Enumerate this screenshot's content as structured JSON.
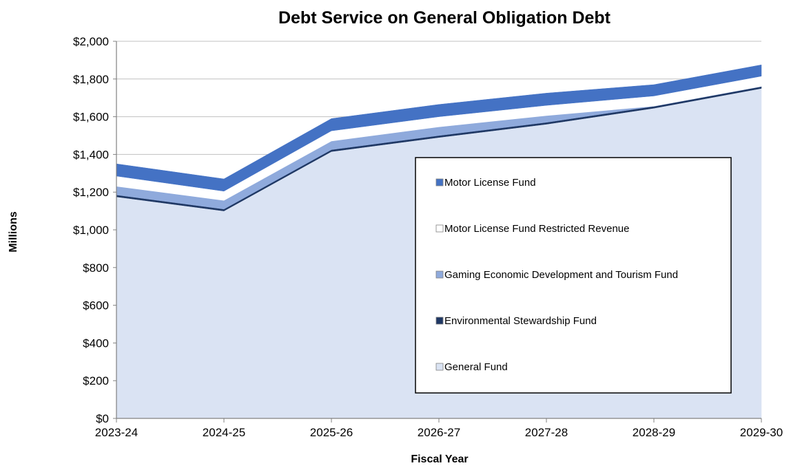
{
  "chart_data": {
    "type": "area",
    "stacked": true,
    "title": "Debt Service on General Obligation Debt",
    "xlabel": "Fiscal Year",
    "ylabel": "Millions",
    "categories": [
      "2023-24",
      "2024-25",
      "2025-26",
      "2026-27",
      "2027-28",
      "2028-29",
      "2029-30"
    ],
    "ylim": [
      0,
      2000
    ],
    "yticks": [
      0,
      200,
      400,
      600,
      800,
      1000,
      1200,
      1400,
      1600,
      1800,
      2000
    ],
    "ytick_labels": [
      "$0",
      "$200",
      "$400",
      "$600",
      "$800",
      "$1,000",
      "$1,200",
      "$1,400",
      "$1,600",
      "$1,800",
      "$2,000"
    ],
    "grid": true,
    "legend_placement": "lower-right inside plot",
    "series": [
      {
        "name": "General Fund",
        "color": "#dae3f3",
        "values": [
          1175,
          1100,
          1415,
          1490,
          1560,
          1645,
          1750
        ]
      },
      {
        "name": "Environmental Stewardship Fund",
        "color": "#1f3864",
        "values": [
          10,
          10,
          10,
          10,
          10,
          10,
          10
        ]
      },
      {
        "name": "Gaming Economic Development and Tourism Fund",
        "color": "#8faadc",
        "values": [
          45,
          45,
          45,
          45,
          35,
          0,
          0
        ]
      },
      {
        "name": "Motor License Fund Restricted Revenue",
        "color": "#ffffff",
        "values": [
          55,
          50,
          55,
          55,
          55,
          55,
          55
        ]
      },
      {
        "name": "Motor License Fund",
        "color": "#4472c4",
        "values": [
          65,
          65,
          65,
          65,
          65,
          60,
          60
        ]
      }
    ],
    "legend_order": [
      "Motor License Fund",
      "Motor License Fund Restricted Revenue",
      "Gaming Economic Development and Tourism Fund",
      "Environmental Stewardship Fund",
      "General Fund"
    ]
  }
}
